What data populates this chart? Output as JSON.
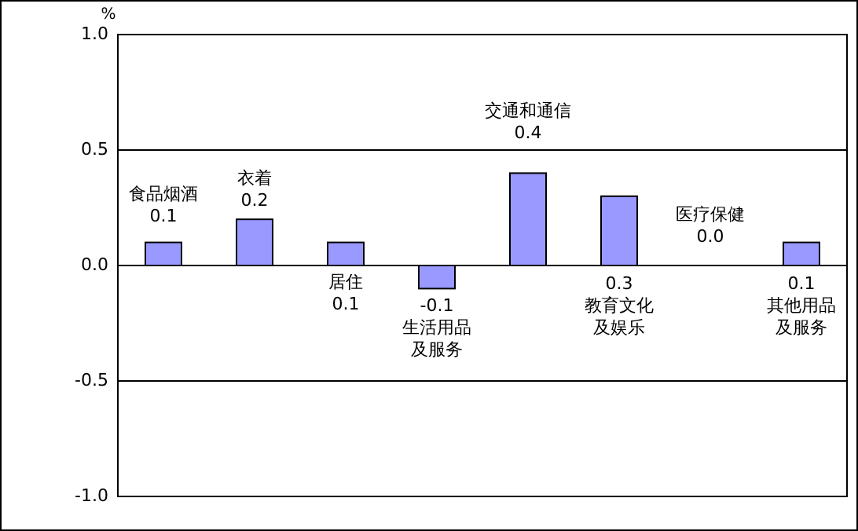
{
  "chart_data": {
    "type": "bar",
    "ylabel": "%",
    "categories": [
      "食品烟酒",
      "衣着",
      "居住",
      "生活用品及服务",
      "交通和通信",
      "教育文化及娱乐",
      "医疗保健",
      "其他用品及服务"
    ],
    "values": [
      0.1,
      0.2,
      0.1,
      -0.1,
      0.4,
      0.3,
      0.0,
      0.1
    ],
    "value_labels": [
      "0.1",
      "0.2",
      "0.1",
      "-0.1",
      "0.4",
      "0.3",
      "0.0",
      "0.1"
    ],
    "color": "#9999ff",
    "ylim": [
      -1,
      1
    ],
    "yticks": [
      {
        "value": -1,
        "label": "-1.0"
      },
      {
        "value": -0.5,
        "label": "-0.5"
      },
      {
        "value": 0,
        "label": "0.0"
      },
      {
        "value": 0.5,
        "label": "0.5"
      },
      {
        "value": 1,
        "label": "1.0"
      }
    ],
    "grid": "y"
  }
}
